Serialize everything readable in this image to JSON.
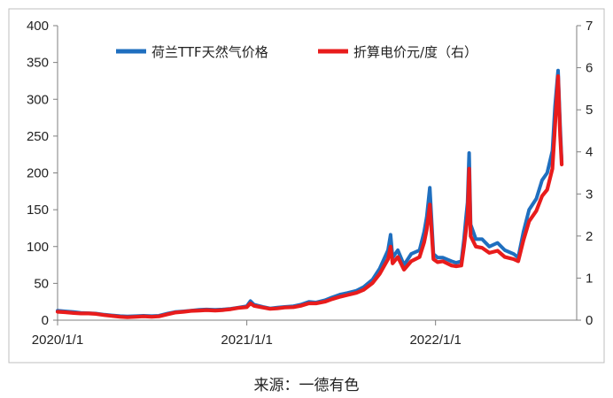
{
  "chart_data": {
    "type": "line",
    "legend_position": "top",
    "grid": false,
    "x_axis": {
      "range": [
        "2020/1/1",
        "2022/10/1"
      ],
      "tick_labels": [
        "2020/1/1",
        "2021/1/1",
        "2022/1/1"
      ]
    },
    "y_left": {
      "range": [
        0,
        400
      ],
      "ticks": [
        0,
        50,
        100,
        150,
        200,
        250,
        300,
        350,
        400
      ]
    },
    "y_right": {
      "range": [
        0,
        7
      ],
      "ticks": [
        0,
        1,
        2,
        3,
        4,
        5,
        6,
        7
      ]
    },
    "series": [
      {
        "name": "荷兰TTF天然气价格",
        "color": "#1f6fbf",
        "axis": "left",
        "points": [
          [
            "2020/1/1",
            13
          ],
          [
            "2020/1/15",
            12
          ],
          [
            "2020/2/1",
            11
          ],
          [
            "2020/2/15",
            10
          ],
          [
            "2020/3/1",
            9.5
          ],
          [
            "2020/3/15",
            9
          ],
          [
            "2020/4/1",
            7.5
          ],
          [
            "2020/4/15",
            6.5
          ],
          [
            "2020/5/1",
            5.5
          ],
          [
            "2020/5/15",
            5
          ],
          [
            "2020/6/1",
            5.5
          ],
          [
            "2020/6/15",
            6
          ],
          [
            "2020/7/1",
            5.5
          ],
          [
            "2020/7/15",
            6
          ],
          [
            "2020/8/1",
            9
          ],
          [
            "2020/8/15",
            11
          ],
          [
            "2020/9/1",
            12
          ],
          [
            "2020/9/15",
            13
          ],
          [
            "2020/10/1",
            14
          ],
          [
            "2020/10/15",
            14.5
          ],
          [
            "2020/11/1",
            14
          ],
          [
            "2020/11/15",
            14.5
          ],
          [
            "2020/12/1",
            15.5
          ],
          [
            "2020/12/15",
            17
          ],
          [
            "2021/1/1",
            19
          ],
          [
            "2021/1/8",
            26
          ],
          [
            "2021/1/15",
            21
          ],
          [
            "2021/2/1",
            18
          ],
          [
            "2021/2/15",
            16
          ],
          [
            "2021/3/1",
            17
          ],
          [
            "2021/3/15",
            18
          ],
          [
            "2021/4/1",
            19
          ],
          [
            "2021/4/15",
            21
          ],
          [
            "2021/5/1",
            25
          ],
          [
            "2021/5/15",
            24
          ],
          [
            "2021/6/1",
            27
          ],
          [
            "2021/6/15",
            31
          ],
          [
            "2021/7/1",
            35
          ],
          [
            "2021/7/15",
            37
          ],
          [
            "2021/8/1",
            40
          ],
          [
            "2021/8/15",
            45
          ],
          [
            "2021/9/1",
            55
          ],
          [
            "2021/9/15",
            70
          ],
          [
            "2021/10/1",
            95
          ],
          [
            "2021/10/6",
            116
          ],
          [
            "2021/10/10",
            85
          ],
          [
            "2021/10/20",
            95
          ],
          [
            "2021/11/1",
            75
          ],
          [
            "2021/11/15",
            90
          ],
          [
            "2021/12/1",
            95
          ],
          [
            "2021/12/10",
            120
          ],
          [
            "2021/12/15",
            140
          ],
          [
            "2021/12/21",
            180
          ],
          [
            "2021/12/28",
            90
          ],
          [
            "2022/1/5",
            85
          ],
          [
            "2022/1/15",
            85
          ],
          [
            "2022/2/1",
            80
          ],
          [
            "2022/2/10",
            78
          ],
          [
            "2022/2/20",
            80
          ],
          [
            "2022/2/25",
            110
          ],
          [
            "2022/3/1",
            140
          ],
          [
            "2022/3/4",
            160
          ],
          [
            "2022/3/7",
            227
          ],
          [
            "2022/3/10",
            130
          ],
          [
            "2022/3/20",
            110
          ],
          [
            "2022/4/1",
            110
          ],
          [
            "2022/4/15",
            100
          ],
          [
            "2022/5/1",
            105
          ],
          [
            "2022/5/15",
            95
          ],
          [
            "2022/6/1",
            90
          ],
          [
            "2022/6/10",
            85
          ],
          [
            "2022/6/20",
            120
          ],
          [
            "2022/7/1",
            150
          ],
          [
            "2022/7/15",
            165
          ],
          [
            "2022/7/26",
            190
          ],
          [
            "2022/8/5",
            200
          ],
          [
            "2022/8/15",
            230
          ],
          [
            "2022/8/20",
            290
          ],
          [
            "2022/8/26",
            339
          ],
          [
            "2022/8/30",
            265
          ],
          [
            "2022/9/2",
            215
          ]
        ]
      },
      {
        "name": "折算电价元/度（右）",
        "color": "#e81c1c",
        "axis": "right",
        "points": [
          [
            "2020/1/1",
            0.2
          ],
          [
            "2020/1/15",
            0.19
          ],
          [
            "2020/2/1",
            0.17
          ],
          [
            "2020/2/15",
            0.16
          ],
          [
            "2020/3/1",
            0.16
          ],
          [
            "2020/3/15",
            0.15
          ],
          [
            "2020/4/1",
            0.12
          ],
          [
            "2020/4/15",
            0.1
          ],
          [
            "2020/5/1",
            0.08
          ],
          [
            "2020/5/15",
            0.07
          ],
          [
            "2020/6/1",
            0.08
          ],
          [
            "2020/6/15",
            0.09
          ],
          [
            "2020/7/1",
            0.08
          ],
          [
            "2020/7/15",
            0.09
          ],
          [
            "2020/8/1",
            0.14
          ],
          [
            "2020/8/15",
            0.18
          ],
          [
            "2020/9/1",
            0.2
          ],
          [
            "2020/9/15",
            0.22
          ],
          [
            "2020/10/1",
            0.23
          ],
          [
            "2020/10/15",
            0.24
          ],
          [
            "2020/11/1",
            0.23
          ],
          [
            "2020/11/15",
            0.24
          ],
          [
            "2020/12/1",
            0.26
          ],
          [
            "2020/12/15",
            0.29
          ],
          [
            "2021/1/1",
            0.31
          ],
          [
            "2021/1/8",
            0.4
          ],
          [
            "2021/1/15",
            0.34
          ],
          [
            "2021/2/1",
            0.3
          ],
          [
            "2021/2/15",
            0.27
          ],
          [
            "2021/3/1",
            0.28
          ],
          [
            "2021/3/15",
            0.3
          ],
          [
            "2021/4/1",
            0.31
          ],
          [
            "2021/4/15",
            0.34
          ],
          [
            "2021/5/1",
            0.4
          ],
          [
            "2021/5/15",
            0.4
          ],
          [
            "2021/6/1",
            0.44
          ],
          [
            "2021/6/15",
            0.5
          ],
          [
            "2021/7/1",
            0.56
          ],
          [
            "2021/7/15",
            0.6
          ],
          [
            "2021/8/1",
            0.65
          ],
          [
            "2021/8/15",
            0.72
          ],
          [
            "2021/9/1",
            0.88
          ],
          [
            "2021/9/15",
            1.1
          ],
          [
            "2021/10/1",
            1.45
          ],
          [
            "2021/10/6",
            1.75
          ],
          [
            "2021/10/10",
            1.35
          ],
          [
            "2021/10/20",
            1.5
          ],
          [
            "2021/11/1",
            1.2
          ],
          [
            "2021/11/15",
            1.4
          ],
          [
            "2021/12/1",
            1.5
          ],
          [
            "2021/12/10",
            1.85
          ],
          [
            "2021/12/15",
            2.15
          ],
          [
            "2021/12/21",
            2.75
          ],
          [
            "2021/12/28",
            1.45
          ],
          [
            "2022/1/5",
            1.38
          ],
          [
            "2022/1/15",
            1.4
          ],
          [
            "2022/2/1",
            1.3
          ],
          [
            "2022/2/10",
            1.28
          ],
          [
            "2022/2/20",
            1.3
          ],
          [
            "2022/2/25",
            1.75
          ],
          [
            "2022/3/1",
            2.15
          ],
          [
            "2022/3/4",
            2.45
          ],
          [
            "2022/3/7",
            3.6
          ],
          [
            "2022/3/10",
            2.0
          ],
          [
            "2022/3/20",
            1.75
          ],
          [
            "2022/4/1",
            1.72
          ],
          [
            "2022/4/15",
            1.6
          ],
          [
            "2022/5/1",
            1.65
          ],
          [
            "2022/5/15",
            1.5
          ],
          [
            "2022/6/1",
            1.45
          ],
          [
            "2022/6/10",
            1.4
          ],
          [
            "2022/6/20",
            1.9
          ],
          [
            "2022/7/1",
            2.35
          ],
          [
            "2022/7/15",
            2.6
          ],
          [
            "2022/7/26",
            2.95
          ],
          [
            "2022/8/5",
            3.1
          ],
          [
            "2022/8/15",
            3.6
          ],
          [
            "2022/8/20",
            4.6
          ],
          [
            "2022/8/26",
            5.8
          ],
          [
            "2022/8/30",
            4.4
          ],
          [
            "2022/9/2",
            3.7
          ]
        ]
      }
    ]
  },
  "source": "来源：一德有色"
}
